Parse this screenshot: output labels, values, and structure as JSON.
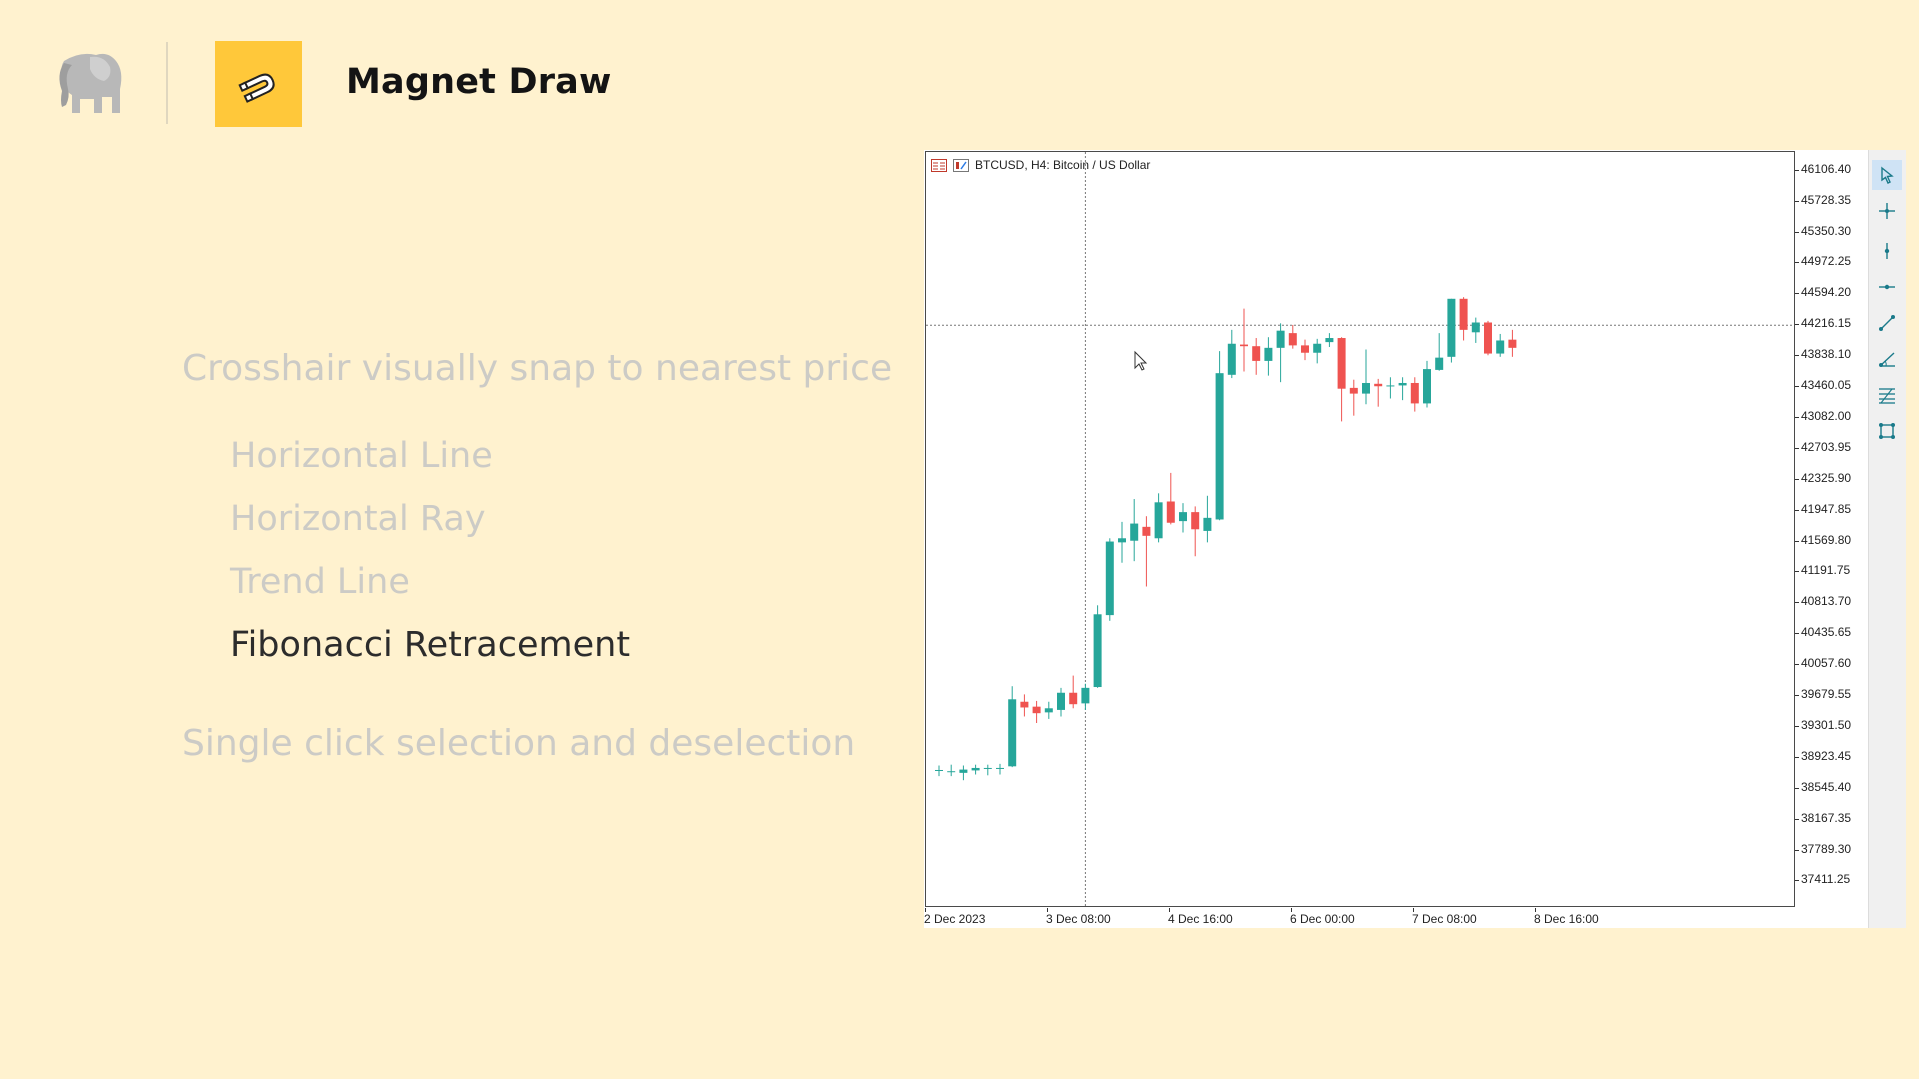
{
  "header": {
    "logo_icon": "elephant-icon",
    "app_icon": "magnet-icon",
    "title": "Magnet Draw",
    "badge_color": "#ffc83a"
  },
  "features": {
    "crosshair": "Crosshair visually snap to nearest price",
    "items": [
      {
        "label": "Horizontal Line",
        "active": false
      },
      {
        "label": "Horizontal Ray",
        "active": false
      },
      {
        "label": "Trend Line",
        "active": false
      },
      {
        "label": "Fibonacci Retracement",
        "active": true
      }
    ],
    "selection": "Single click selection and deselection"
  },
  "chart": {
    "header_text": "BTCUSD, H4:  Bitcoin / US Dollar",
    "price_labels": [
      "46106.40",
      "45728.35",
      "45350.30",
      "44972.25",
      "44594.20",
      "44216.15",
      "43838.10",
      "43460.05",
      "43082.00",
      "42703.95",
      "42325.90",
      "41947.85",
      "41569.80",
      "41191.75",
      "40813.70",
      "40435.65",
      "40057.60",
      "39679.55",
      "39301.50",
      "38923.45",
      "38545.40",
      "38167.35",
      "37789.30",
      "37411.25"
    ],
    "time_labels": [
      "2 Dec 2023",
      "3 Dec 08:00",
      "4 Dec 16:00",
      "6 Dec 00:00",
      "7 Dec 08:00",
      "8 Dec 16:00"
    ],
    "bull_color": "#26a69a",
    "bear_color": "#ef5350",
    "crosshair_price": 44216
  },
  "chart_data": {
    "type": "candlestick",
    "symbol": "BTCUSD",
    "timeframe": "H4",
    "ylim": [
      37111,
      46336
    ],
    "candles": [
      {
        "o": 38775,
        "h": 38830,
        "l": 38700,
        "c": 38775
      },
      {
        "o": 38760,
        "h": 38840,
        "l": 38700,
        "c": 38760
      },
      {
        "o": 38740,
        "h": 38830,
        "l": 38650,
        "c": 38780
      },
      {
        "o": 38770,
        "h": 38840,
        "l": 38720,
        "c": 38800
      },
      {
        "o": 38790,
        "h": 38840,
        "l": 38710,
        "c": 38800
      },
      {
        "o": 38800,
        "h": 38850,
        "l": 38720,
        "c": 38800
      },
      {
        "o": 38820,
        "h": 39800,
        "l": 38810,
        "c": 39640
      },
      {
        "o": 39610,
        "h": 39700,
        "l": 39430,
        "c": 39540
      },
      {
        "o": 39550,
        "h": 39620,
        "l": 39350,
        "c": 39470
      },
      {
        "o": 39480,
        "h": 39610,
        "l": 39400,
        "c": 39530
      },
      {
        "o": 39510,
        "h": 39780,
        "l": 39430,
        "c": 39720
      },
      {
        "o": 39720,
        "h": 39930,
        "l": 39530,
        "c": 39580
      },
      {
        "o": 39590,
        "h": 39830,
        "l": 39510,
        "c": 39780
      },
      {
        "o": 39790,
        "h": 40790,
        "l": 39780,
        "c": 40680
      },
      {
        "o": 40670,
        "h": 41610,
        "l": 40600,
        "c": 41570
      },
      {
        "o": 41560,
        "h": 41810,
        "l": 41310,
        "c": 41610
      },
      {
        "o": 41580,
        "h": 42090,
        "l": 41330,
        "c": 41790
      },
      {
        "o": 41750,
        "h": 41880,
        "l": 41020,
        "c": 41640
      },
      {
        "o": 41610,
        "h": 42160,
        "l": 41560,
        "c": 42050
      },
      {
        "o": 42060,
        "h": 42410,
        "l": 41780,
        "c": 41800
      },
      {
        "o": 41820,
        "h": 42040,
        "l": 41680,
        "c": 41930
      },
      {
        "o": 41930,
        "h": 42000,
        "l": 41390,
        "c": 41720
      },
      {
        "o": 41700,
        "h": 42130,
        "l": 41560,
        "c": 41860
      },
      {
        "o": 41840,
        "h": 43900,
        "l": 41830,
        "c": 43630
      },
      {
        "o": 43610,
        "h": 44160,
        "l": 43570,
        "c": 43990
      },
      {
        "o": 43980,
        "h": 44420,
        "l": 43650,
        "c": 43960
      },
      {
        "o": 43960,
        "h": 44060,
        "l": 43610,
        "c": 43780
      },
      {
        "o": 43780,
        "h": 44070,
        "l": 43600,
        "c": 43940
      },
      {
        "o": 43940,
        "h": 44240,
        "l": 43520,
        "c": 44150
      },
      {
        "o": 44120,
        "h": 44220,
        "l": 43930,
        "c": 43970
      },
      {
        "o": 43970,
        "h": 44040,
        "l": 43790,
        "c": 43880
      },
      {
        "o": 43880,
        "h": 44050,
        "l": 43750,
        "c": 43990
      },
      {
        "o": 44010,
        "h": 44120,
        "l": 43950,
        "c": 44060
      },
      {
        "o": 44060,
        "h": 44070,
        "l": 43040,
        "c": 43440
      },
      {
        "o": 43450,
        "h": 43550,
        "l": 43110,
        "c": 43380
      },
      {
        "o": 43380,
        "h": 43920,
        "l": 43250,
        "c": 43510
      },
      {
        "o": 43500,
        "h": 43560,
        "l": 43220,
        "c": 43470
      },
      {
        "o": 43470,
        "h": 43580,
        "l": 43320,
        "c": 43480
      },
      {
        "o": 43480,
        "h": 43580,
        "l": 43300,
        "c": 43510
      },
      {
        "o": 43510,
        "h": 43580,
        "l": 43160,
        "c": 43260
      },
      {
        "o": 43260,
        "h": 43780,
        "l": 43210,
        "c": 43680
      },
      {
        "o": 43670,
        "h": 44120,
        "l": 43660,
        "c": 43820
      },
      {
        "o": 43830,
        "h": 44540,
        "l": 43760,
        "c": 44540
      },
      {
        "o": 44540,
        "h": 44560,
        "l": 44030,
        "c": 44160
      },
      {
        "o": 44130,
        "h": 44310,
        "l": 44000,
        "c": 44250
      },
      {
        "o": 44250,
        "h": 44270,
        "l": 43850,
        "c": 43870
      },
      {
        "o": 43870,
        "h": 44110,
        "l": 43830,
        "c": 44030
      },
      {
        "o": 44040,
        "h": 44160,
        "l": 43830,
        "c": 43940
      }
    ]
  },
  "toolbar": {
    "tools": [
      {
        "name": "cursor-tool",
        "icon": "cursor-icon",
        "selected": true
      },
      {
        "name": "crosshair-tool",
        "icon": "crosshair-icon",
        "selected": false
      },
      {
        "name": "vertical-line-tool",
        "icon": "vertical-line-icon",
        "selected": false
      },
      {
        "name": "horizontal-line-tool",
        "icon": "horizontal-line-icon",
        "selected": false
      },
      {
        "name": "trend-line-tool",
        "icon": "trend-line-icon",
        "selected": false
      },
      {
        "name": "angle-line-tool",
        "icon": "angle-line-icon",
        "selected": false
      },
      {
        "name": "fibonacci-tool",
        "icon": "fibonacci-icon",
        "selected": false
      },
      {
        "name": "rectangle-tool",
        "icon": "rectangle-icon",
        "selected": false
      }
    ]
  }
}
